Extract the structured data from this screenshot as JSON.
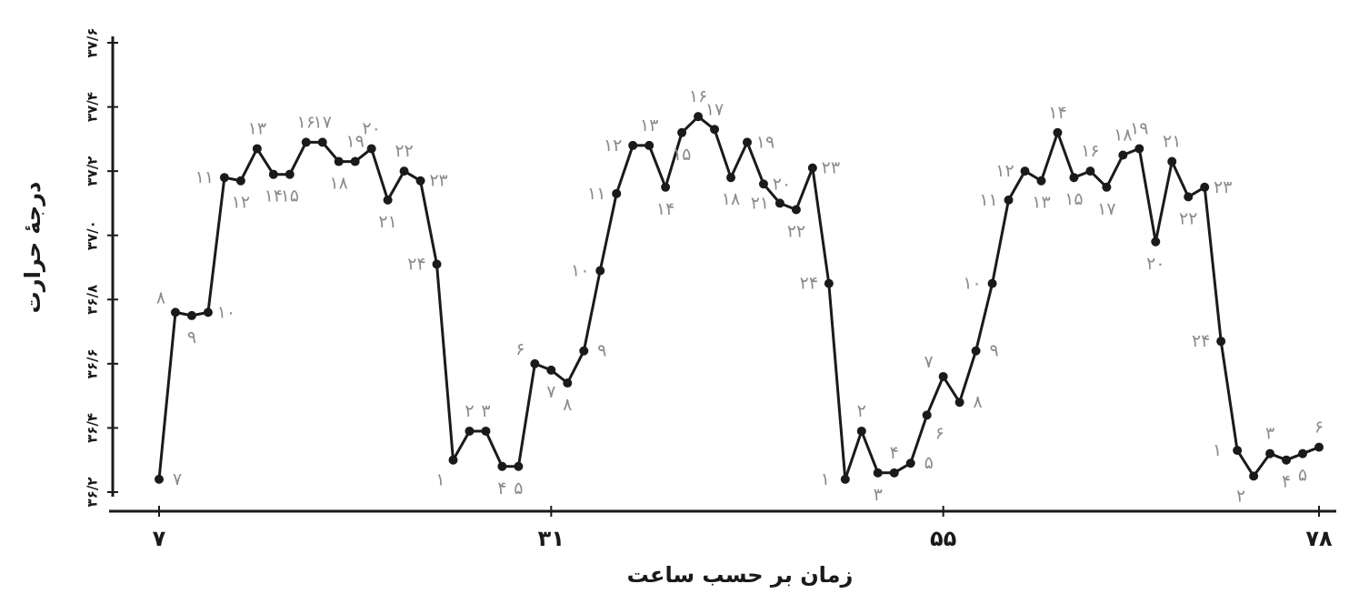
{
  "chart_data": {
    "type": "line",
    "xlabel": "زمان بر حسب ساعت",
    "ylabel": "درجهٔ حرارت",
    "xlim": [
      7,
      78
    ],
    "ylim": [
      36.2,
      37.6
    ],
    "x_ticks": [
      7,
      31,
      55,
      78
    ],
    "x_tick_labels": [
      "۷",
      "۳۱",
      "۵۵",
      "۷۸"
    ],
    "y_ticks": [
      36.2,
      36.4,
      36.6,
      36.8,
      37.0,
      37.2,
      37.4,
      37.6
    ],
    "y_tick_labels": [
      "۳۶/۲",
      "۳۶/۴",
      "۳۶/۶",
      "۳۶/۸",
      "۳۷/۰",
      "۳۷/۲",
      "۳۷/۴",
      "۳۷/۶"
    ],
    "grid": false,
    "series": [
      {
        "color": "#1a1a1a",
        "points": [
          {
            "x": 7,
            "y": 36.24,
            "label": "۷",
            "pos": "right"
          },
          {
            "x": 8,
            "y": 36.76,
            "label": "۸",
            "pos": "upleft"
          },
          {
            "x": 9,
            "y": 36.75,
            "label": "۹",
            "pos": "below"
          },
          {
            "x": 10,
            "y": 36.76,
            "label": "۱۰",
            "pos": "right"
          },
          {
            "x": 11,
            "y": 37.18,
            "label": "۱۱",
            "pos": "left"
          },
          {
            "x": 12,
            "y": 37.17,
            "label": "۱۲",
            "pos": "below"
          },
          {
            "x": 13,
            "y": 37.27,
            "label": "۱۳",
            "pos": "above"
          },
          {
            "x": 14,
            "y": 37.19,
            "label": "۱۴",
            "pos": "below"
          },
          {
            "x": 15,
            "y": 37.19,
            "label": "۱۵",
            "pos": "below"
          },
          {
            "x": 16,
            "y": 37.29,
            "label": "۱۶",
            "pos": "above"
          },
          {
            "x": 17,
            "y": 37.29,
            "label": "۱۷",
            "pos": "above"
          },
          {
            "x": 18,
            "y": 37.23,
            "label": "۱۸",
            "pos": "below"
          },
          {
            "x": 19,
            "y": 37.23,
            "label": "۱۹",
            "pos": "above"
          },
          {
            "x": 20,
            "y": 37.27,
            "label": "۲۰",
            "pos": "above"
          },
          {
            "x": 21,
            "y": 37.11,
            "label": "۲۱",
            "pos": "below"
          },
          {
            "x": 22,
            "y": 37.2,
            "label": "۲۲",
            "pos": "above"
          },
          {
            "x": 23,
            "y": 37.17,
            "label": "۲۳",
            "pos": "right"
          },
          {
            "x": 24,
            "y": 36.91,
            "label": "۲۴",
            "pos": "left"
          },
          {
            "x": 1,
            "y": 36.3,
            "label": "۱",
            "pos": "belowleft"
          },
          {
            "x": 2,
            "y": 36.39,
            "label": "۲",
            "pos": "above"
          },
          {
            "x": 3,
            "y": 36.39,
            "label": "۳",
            "pos": "above"
          },
          {
            "x": 4,
            "y": 36.28,
            "label": "۴",
            "pos": "below"
          },
          {
            "x": 5,
            "y": 36.28,
            "label": "۵",
            "pos": "below"
          },
          {
            "x": 6,
            "y": 36.6,
            "label": "۶",
            "pos": "upleft"
          },
          {
            "x": 7,
            "y": 36.58,
            "label": "۷",
            "pos": "below"
          },
          {
            "x": 8,
            "y": 36.54,
            "label": "۸",
            "pos": "below"
          },
          {
            "x": 9,
            "y": 36.64,
            "label": "۹",
            "pos": "right"
          },
          {
            "x": 10,
            "y": 36.89,
            "label": "۱۰",
            "pos": "left"
          },
          {
            "x": 11,
            "y": 37.13,
            "label": "۱۱",
            "pos": "left"
          },
          {
            "x": 12,
            "y": 37.28,
            "label": "۱۲",
            "pos": "left"
          },
          {
            "x": 13,
            "y": 37.28,
            "label": "۱۳",
            "pos": "above"
          },
          {
            "x": 14,
            "y": 37.15,
            "label": "۱۴",
            "pos": "below"
          },
          {
            "x": 15,
            "y": 37.32,
            "label": "۱۵",
            "pos": "below"
          },
          {
            "x": 16,
            "y": 37.37,
            "label": "۱۶",
            "pos": "above"
          },
          {
            "x": 17,
            "y": 37.33,
            "label": "۱۷",
            "pos": "above"
          },
          {
            "x": 18,
            "y": 37.18,
            "label": "۱۸",
            "pos": "below"
          },
          {
            "x": 19,
            "y": 37.29,
            "label": "۱۹",
            "pos": "right"
          },
          {
            "x": 20,
            "y": 37.16,
            "label": "۲۰",
            "pos": "right"
          },
          {
            "x": 21,
            "y": 37.1,
            "label": "۲۱",
            "pos": "left"
          },
          {
            "x": 22,
            "y": 37.08,
            "label": "۲۲",
            "pos": "below"
          },
          {
            "x": 23,
            "y": 37.21,
            "label": "۲۳",
            "pos": "right"
          },
          {
            "x": 24,
            "y": 36.85,
            "label": "۲۴",
            "pos": "left"
          },
          {
            "x": 1,
            "y": 36.24,
            "label": "۱",
            "pos": "left"
          },
          {
            "x": 2,
            "y": 36.39,
            "label": "۲",
            "pos": "above"
          },
          {
            "x": 3,
            "y": 36.26,
            "label": "۳",
            "pos": "below"
          },
          {
            "x": 4,
            "y": 36.26,
            "label": "۴",
            "pos": "above"
          },
          {
            "x": 5,
            "y": 36.29,
            "label": "۵",
            "pos": "right"
          },
          {
            "x": 6,
            "y": 36.44,
            "label": "۶",
            "pos": "belowright"
          },
          {
            "x": 7,
            "y": 36.56,
            "label": "۷",
            "pos": "upleft"
          },
          {
            "x": 8,
            "y": 36.48,
            "label": "۸",
            "pos": "right"
          },
          {
            "x": 9,
            "y": 36.64,
            "label": "۹",
            "pos": "right"
          },
          {
            "x": 10,
            "y": 36.85,
            "label": "۱۰",
            "pos": "left"
          },
          {
            "x": 11,
            "y": 37.11,
            "label": "۱۱",
            "pos": "left"
          },
          {
            "x": 12,
            "y": 37.2,
            "label": "۱۲",
            "pos": "left"
          },
          {
            "x": 13,
            "y": 37.17,
            "label": "۱۳",
            "pos": "below"
          },
          {
            "x": 14,
            "y": 37.32,
            "label": "۱۴",
            "pos": "above"
          },
          {
            "x": 15,
            "y": 37.18,
            "label": "۱۵",
            "pos": "below"
          },
          {
            "x": 16,
            "y": 37.2,
            "label": "۱۶",
            "pos": "above"
          },
          {
            "x": 17,
            "y": 37.15,
            "label": "۱۷",
            "pos": "below"
          },
          {
            "x": 18,
            "y": 37.25,
            "label": "۱۸",
            "pos": "above"
          },
          {
            "x": 19,
            "y": 37.27,
            "label": "۱۹",
            "pos": "above"
          },
          {
            "x": 20,
            "y": 36.98,
            "label": "۲۰",
            "pos": "below"
          },
          {
            "x": 21,
            "y": 37.23,
            "label": "۲۱",
            "pos": "above"
          },
          {
            "x": 22,
            "y": 37.12,
            "label": "۲۲",
            "pos": "below"
          },
          {
            "x": 23,
            "y": 37.15,
            "label": "۲۳",
            "pos": "right"
          },
          {
            "x": 24,
            "y": 36.67,
            "label": "۲۴",
            "pos": "left"
          },
          {
            "x": 1,
            "y": 36.33,
            "label": "۱",
            "pos": "left"
          },
          {
            "x": 2,
            "y": 36.25,
            "label": "۲",
            "pos": "belowleft"
          },
          {
            "x": 3,
            "y": 36.32,
            "label": "۳",
            "pos": "above"
          },
          {
            "x": 4,
            "y": 36.3,
            "label": "۴",
            "pos": "below"
          },
          {
            "x": 5,
            "y": 36.32,
            "label": "۵",
            "pos": "below"
          },
          {
            "x": 6,
            "y": 36.34,
            "label": "۶",
            "pos": "above"
          }
        ]
      }
    ]
  }
}
